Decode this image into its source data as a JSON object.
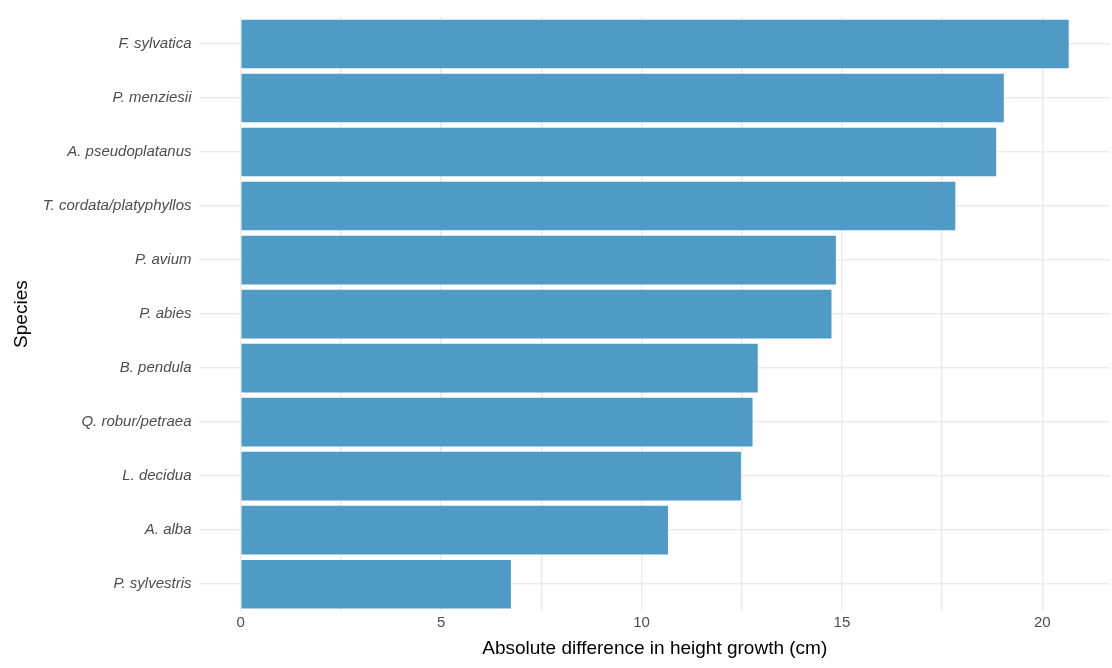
{
  "chart_data": {
    "type": "bar",
    "orientation": "horizontal",
    "xlabel": "Absolute difference in height growth (cm)",
    "ylabel": "Species",
    "categories": [
      "F. sylvatica",
      "P. menziesii",
      "A. pseudoplatanus",
      "T. cordata/platyphyllos",
      "P. avium",
      "P. abies",
      "B. pendula",
      "Q. robur/petraea",
      "L. decidua",
      "A. alba",
      "P. sylvestris"
    ],
    "values": [
      20.66,
      19.04,
      18.85,
      17.83,
      14.85,
      14.74,
      12.9,
      12.77,
      12.48,
      10.66,
      6.74
    ],
    "color": "#4f9bc6",
    "xlim": [
      -1.03,
      21.69
    ],
    "xticks": [
      0,
      {
        "value": 2.5,
        "label": null
      },
      5,
      {
        "value": 7.5,
        "label": null
      },
      10,
      {
        "value": 12.5,
        "label": null
      },
      15,
      {
        "value": 17.5,
        "label": null
      },
      20
    ],
    "grid": true,
    "legend": false
  }
}
